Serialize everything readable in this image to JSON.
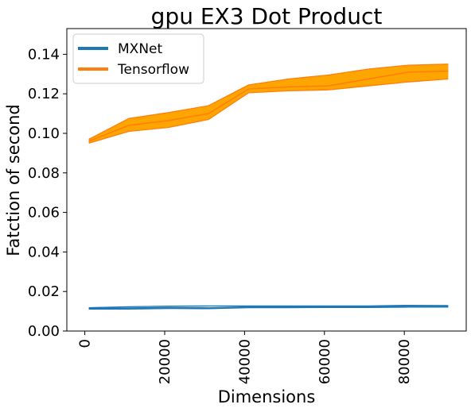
{
  "chart_data": {
    "type": "line",
    "title": "gpu EX3 Dot Product",
    "xlabel": "Dimensions",
    "ylabel": "Fatction of second",
    "xlim": [
      -4500,
      95500
    ],
    "ylim": [
      0,
      0.153
    ],
    "xticks": [
      0,
      20000,
      40000,
      60000,
      80000
    ],
    "xtick_labels": [
      "0",
      "20000",
      "40000",
      "60000",
      "80000"
    ],
    "yticks": [
      0.0,
      0.02,
      0.04,
      0.06,
      0.08,
      0.1,
      0.12,
      0.14
    ],
    "ytick_labels": [
      "0.00",
      "0.02",
      "0.04",
      "0.06",
      "0.08",
      "0.10",
      "0.12",
      "0.14"
    ],
    "grid": false,
    "legend_position": "top-left",
    "x": [
      1000,
      11000,
      21000,
      31000,
      41000,
      51000,
      61000,
      71000,
      81000,
      91000
    ],
    "series": [
      {
        "name": "MXNet",
        "color": "#1f77b4",
        "fill_color": "#1f77b4",
        "lower": [
          0.0111,
          0.0111,
          0.0114,
          0.0113,
          0.0118,
          0.0118,
          0.0119,
          0.0119,
          0.0121,
          0.0121
        ],
        "mean": [
          0.0114,
          0.0116,
          0.0119,
          0.0117,
          0.0122,
          0.0122,
          0.0123,
          0.0123,
          0.0125,
          0.0124
        ],
        "upper": [
          0.0118,
          0.0123,
          0.0126,
          0.0127,
          0.0127,
          0.0127,
          0.0127,
          0.0127,
          0.013,
          0.0129
        ]
      },
      {
        "name": "Tensorflow",
        "color": "#ff7f0e",
        "fill_color": "#ffa500",
        "lower": [
          0.095,
          0.101,
          0.103,
          0.107,
          0.1205,
          0.1215,
          0.122,
          0.124,
          0.126,
          0.1275
        ],
        "mean": [
          0.096,
          0.104,
          0.1065,
          0.11,
          0.1225,
          0.1235,
          0.124,
          0.1275,
          0.131,
          0.1315
        ],
        "upper": [
          0.097,
          0.1075,
          0.1105,
          0.114,
          0.1245,
          0.1275,
          0.1295,
          0.1325,
          0.1345,
          0.135
        ]
      }
    ]
  }
}
